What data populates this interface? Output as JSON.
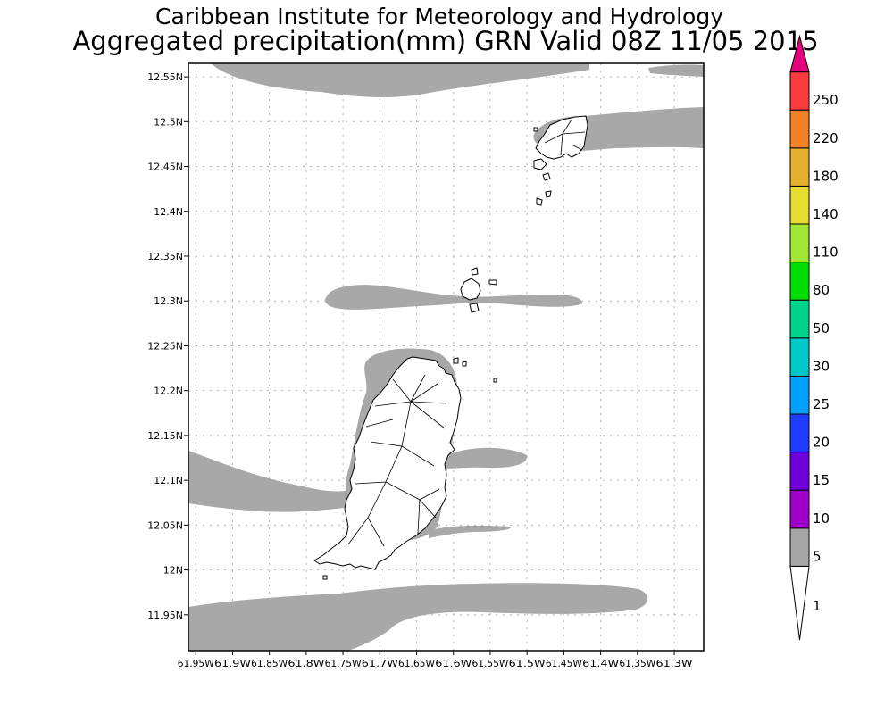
{
  "header": {
    "title": "Caribbean Institute for Meteorology and Hydrology",
    "subtitle": "Aggregated precipitation(mm) GRN Valid 08Z 11/05 2015"
  },
  "map": {
    "lon_range": [
      -61.96,
      -61.26
    ],
    "lat_range": [
      11.91,
      12.565
    ],
    "grid": true,
    "lat_ticks": [
      {
        "value": 12.55,
        "label": "12.55N"
      },
      {
        "value": 12.5,
        "label": "12.5N"
      },
      {
        "value": 12.45,
        "label": "12.45N"
      },
      {
        "value": 12.4,
        "label": "12.4N"
      },
      {
        "value": 12.35,
        "label": "12.35N"
      },
      {
        "value": 12.3,
        "label": "12.3N"
      },
      {
        "value": 12.25,
        "label": "12.25N"
      },
      {
        "value": 12.2,
        "label": "12.2N"
      },
      {
        "value": 12.15,
        "label": "12.15N"
      },
      {
        "value": 12.1,
        "label": "12.1N"
      },
      {
        "value": 12.05,
        "label": "12.05N"
      },
      {
        "value": 12.0,
        "label": "12N"
      },
      {
        "value": 11.95,
        "label": "11.95N"
      }
    ],
    "lon_ticks": [
      {
        "value": -61.95,
        "label": "61.95W"
      },
      {
        "value": -61.9,
        "label": "61.9W"
      },
      {
        "value": -61.85,
        "label": "61.85W"
      },
      {
        "value": -61.8,
        "label": "61.8W"
      },
      {
        "value": -61.75,
        "label": "61.75W"
      },
      {
        "value": -61.7,
        "label": "61.7W"
      },
      {
        "value": -61.65,
        "label": "61.65W"
      },
      {
        "value": -61.6,
        "label": "61.6W"
      },
      {
        "value": -61.55,
        "label": "61.55W"
      },
      {
        "value": -61.5,
        "label": "61.5W"
      },
      {
        "value": -61.45,
        "label": "61.45W"
      },
      {
        "value": -61.4,
        "label": "61.4W"
      },
      {
        "value": -61.35,
        "label": "61.35W"
      },
      {
        "value": -61.3,
        "label": "61.3W"
      }
    ],
    "precip_color": "#a8a8a8"
  },
  "colorbar": {
    "levels": [
      {
        "label": "1",
        "color": "#ffffff"
      },
      {
        "label": "5",
        "color": "#a6a6a6"
      },
      {
        "label": "10",
        "color": "#a000c8"
      },
      {
        "label": "15",
        "color": "#6e00dc"
      },
      {
        "label": "20",
        "color": "#1e3cff"
      },
      {
        "label": "25",
        "color": "#00a0ff"
      },
      {
        "label": "30",
        "color": "#00c8c8"
      },
      {
        "label": "50",
        "color": "#00d28c"
      },
      {
        "label": "80",
        "color": "#00dc00"
      },
      {
        "label": "110",
        "color": "#a0e632"
      },
      {
        "label": "140",
        "color": "#e6dc32"
      },
      {
        "label": "180",
        "color": "#e6af2d"
      },
      {
        "label": "220",
        "color": "#f08228"
      },
      {
        "label": "250",
        "color": "#fa3c3c"
      }
    ],
    "top_color": "#e6007e"
  }
}
